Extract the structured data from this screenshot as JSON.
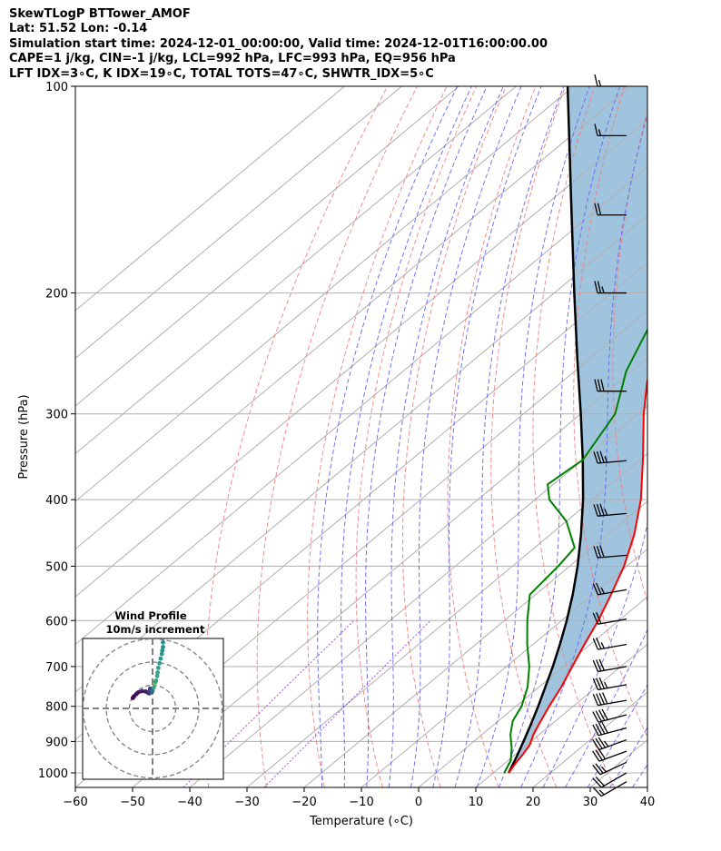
{
  "header": {
    "line1": "SkewTLogP BTTower_AMOF",
    "line2": "Lat: 51.52   Lon: -0.14",
    "line3": "Simulation start time: 2024-12-01_00:00:00, Valid time: 2024-12-01T16:00:00.00",
    "line4": "CAPE=1 j/kg, CIN=-1 j/kg, LCL=992 hPa, LFC=993 hPa, EQ=956 hPa",
    "line5": "LFT IDX=3∘C, K IDX=19∘C, TOTAL TOTS=47∘C, SHWTR_IDX=5∘C"
  },
  "chart_data": [
    {
      "type": "line",
      "subtype": "skew-t log-p",
      "xlabel": "Temperature (∘C)",
      "ylabel": "Pressure (hPa)",
      "xlim": [
        -60,
        40
      ],
      "ylim": [
        1050,
        100
      ],
      "y_scale": "log",
      "x_ticks": [
        "−60",
        "−50",
        "−40",
        "−30",
        "−20",
        "−10",
        "0",
        "10",
        "20",
        "30",
        "40"
      ],
      "y_ticks": [
        "100",
        "200",
        "300",
        "400",
        "500",
        "600",
        "700",
        "800",
        "900",
        "1000"
      ],
      "grid": true,
      "colors": {
        "temperature": "#ff0000",
        "dewpoint": "#008000",
        "parcel": "#000000",
        "cape_fill": "#a0c4de",
        "dry_adiabat": "#f08080",
        "moist_adiabat": "#6a6af5",
        "mixing_ratio": "#8a2be2"
      },
      "series": [
        {
          "key": "temperature",
          "pressure": [
            1000,
            970,
            940,
            910,
            880,
            850,
            800,
            750,
            700,
            650,
            600,
            550,
            500,
            450,
            400,
            350,
            300,
            270,
            250,
            230,
            210,
            200,
            180,
            160,
            140,
            120,
            100
          ],
          "values": [
            12.7,
            11.9,
            11.3,
            10.5,
            9.0,
            7.8,
            5.8,
            3.9,
            1.5,
            -1.0,
            -3.6,
            -6.8,
            -10.5,
            -15.3,
            -21.5,
            -29.5,
            -39.0,
            -45.0,
            -49.0,
            -53.2,
            -56.0,
            -56.2,
            -54.0,
            -52.5,
            -53.0,
            -55.0,
            -58.5
          ]
        },
        {
          "key": "dewpoint",
          "pressure": [
            1000,
            960,
            920,
            880,
            840,
            800,
            750,
            700,
            650,
            600,
            550,
            500,
            470,
            430,
            400,
            380,
            350,
            300,
            260,
            220,
            200,
            180,
            150,
            100
          ],
          "values": [
            11.9,
            10.5,
            8.0,
            5.0,
            2.5,
            1.0,
            -2.0,
            -6.0,
            -11.0,
            -16.0,
            -21.0,
            -22.0,
            -23.0,
            -30.0,
            -37.5,
            -41.0,
            -40.0,
            -44.0,
            -51.0,
            -57.0,
            -59.5,
            -64.0,
            -73.0,
            -85.0
          ]
        },
        {
          "key": "parcel",
          "pressure": [
            1000,
            950,
            900,
            850,
            800,
            750,
            700,
            650,
            600,
            550,
            500,
            450,
            400,
            350,
            300,
            250,
            200,
            150,
            100
          ],
          "values": [
            12.7,
            10.8,
            8.7,
            6.4,
            3.9,
            1.1,
            -1.9,
            -5.3,
            -9.1,
            -13.5,
            -18.6,
            -24.6,
            -31.6,
            -40.0,
            -50.0,
            -62.0,
            -76.5,
            -95.0,
            -121.0
          ]
        }
      ],
      "wind_barbs": {
        "pressure": [
          1030,
          1000,
          965,
          930,
          895,
          860,
          823,
          784,
          744,
          700,
          650,
          597,
          541,
          482,
          419,
          351,
          278,
          200,
          154,
          118,
          100
        ],
        "speed_kt": [
          15,
          20,
          25,
          30,
          35,
          40,
          40,
          40,
          35,
          30,
          25,
          20,
          25,
          30,
          35,
          35,
          30,
          25,
          20,
          15,
          15
        ],
        "direction_deg": [
          240,
          240,
          245,
          250,
          250,
          255,
          255,
          260,
          260,
          260,
          260,
          260,
          260,
          265,
          265,
          265,
          270,
          270,
          270,
          270,
          270
        ]
      }
    },
    {
      "type": "scatter",
      "subtype": "hodograph",
      "title": "Wind Profile",
      "subtitle": "10m/s increment",
      "ring_increment": 10,
      "rings": [
        10,
        20,
        30
      ],
      "u": [
        -8.5,
        -8.0,
        -7.0,
        -6.0,
        -4.5,
        -3.0,
        -2.0,
        -1.5,
        -1.2,
        -1.0,
        -0.8,
        -0.6,
        0.0,
        0.5,
        1.0,
        1.2,
        1.5,
        2.0,
        2.2,
        2.5,
        3.0,
        3.5,
        4.0,
        4.2,
        4.5,
        4.5,
        4.8,
        5.0,
        5.2,
        5.0
      ],
      "v": [
        4.5,
        5.2,
        6.2,
        7.0,
        7.5,
        7.3,
        6.8,
        6.5,
        7.5,
        8.5,
        8.0,
        7.0,
        7.5,
        9.0,
        11.0,
        11.5,
        12.0,
        14.0,
        15.5,
        17.5,
        19.5,
        21.5,
        23.5,
        25.0,
        26.5,
        28.5,
        30.5,
        32.5,
        34.5,
        36.0
      ]
    }
  ]
}
